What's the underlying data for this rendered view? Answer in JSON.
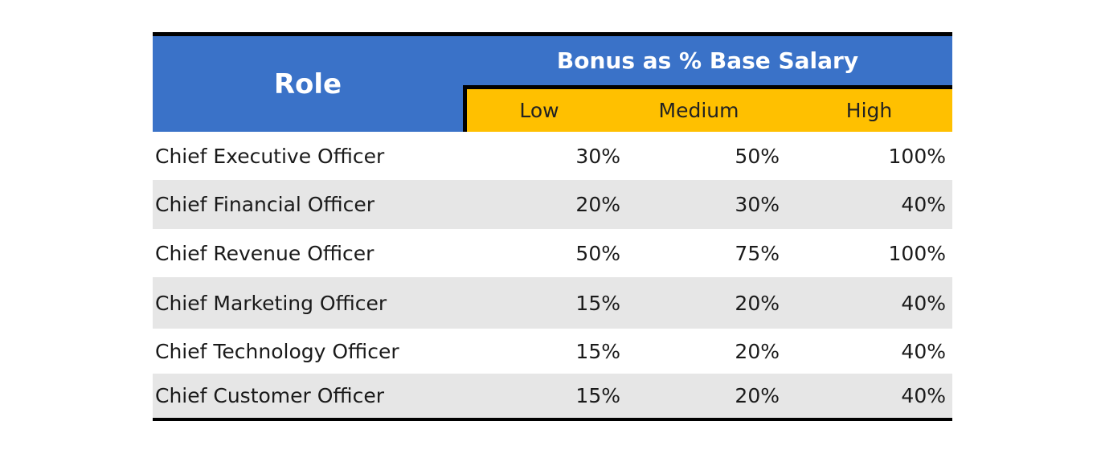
{
  "header": {
    "role": "Role",
    "group": "Bonus as % Base Salary",
    "low": "Low",
    "medium": "Medium",
    "high": "High"
  },
  "rows": [
    {
      "role": "Chief Executive Officer",
      "low": "30%",
      "medium": "50%",
      "high": "100%"
    },
    {
      "role": "Chief Financial Officer",
      "low": "20%",
      "medium": "30%",
      "high": "40%"
    },
    {
      "role": "Chief Revenue Officer",
      "low": "50%",
      "medium": "75%",
      "high": "100%"
    },
    {
      "role": "Chief Marketing Officer",
      "low": "15%",
      "medium": "20%",
      "high": "40%"
    },
    {
      "role": "Chief Technology Officer",
      "low": "15%",
      "medium": "20%",
      "high": "40%"
    },
    {
      "role": "Chief Customer Officer",
      "low": "15%",
      "medium": "20%",
      "high": "40%"
    }
  ],
  "colors": {
    "header_blue": "#3a72c8",
    "subheader_gold": "#ffc000",
    "stripe_gray": "#e6e6e6",
    "rule_black": "#000000"
  }
}
